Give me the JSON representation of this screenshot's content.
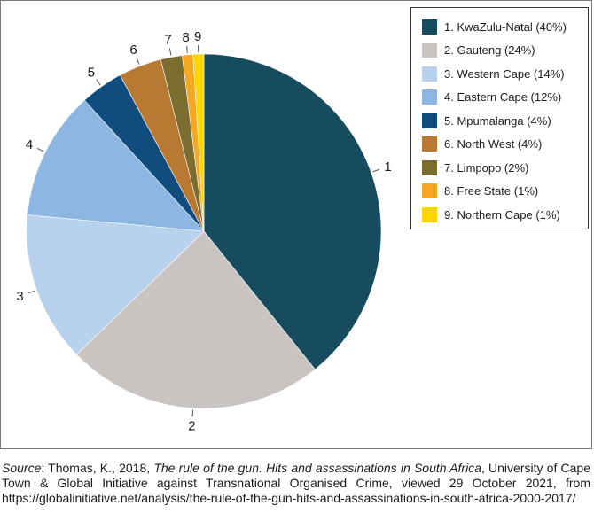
{
  "chart_data": {
    "type": "pie",
    "title": "",
    "categories": [
      "1",
      "2",
      "3",
      "4",
      "5",
      "6",
      "7",
      "8",
      "9"
    ],
    "values": [
      40,
      24,
      14,
      12,
      4,
      4,
      2,
      1,
      1
    ],
    "colors": [
      "#174b5e",
      "#c9c4c2",
      "#b8d1ec",
      "#8db6e3",
      "#104d7e",
      "#b87a33",
      "#7a6d2f",
      "#f5a623",
      "#ffd500"
    ],
    "legend": {
      "placement": "top-right",
      "entries": [
        "1. KwaZulu-Natal (40%)",
        "2. Gauteng (24%)",
        "3. Western Cape (14%)",
        "4. Eastern Cape (12%)",
        "5. Mpumalanga (4%)",
        "6. North West (4%)",
        "7. Limpopo (2%)",
        "8. Free State (1%)",
        "9. Northern Cape (1%)"
      ]
    },
    "start_angle": "12 o'clock",
    "direction": "clockwise"
  },
  "source": {
    "label": "Source",
    "text_before_title": ": Thomas, K., 2018, ",
    "title": "The rule of the gun. Hits and assassinations in South Africa",
    "text_after_title": ", University of Cape Town & Global Initiative against Transnational Organised Crime, viewed 29 October 2021, from https://globalinitiative.net/analysis/the-rule-of-the-gun-hits-and-assassinations-in-south-africa-2000-2017/"
  }
}
